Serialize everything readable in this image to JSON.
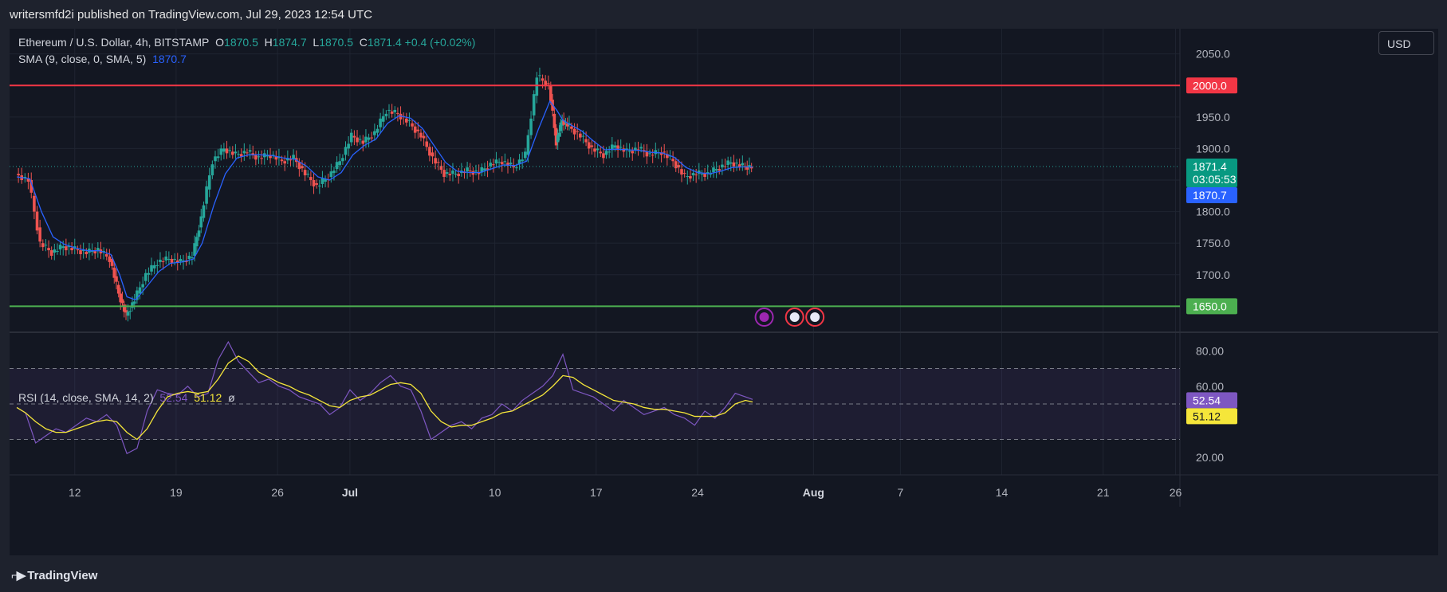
{
  "header": {
    "published_text": "writersmfd2i published on TradingView.com, Jul 29, 2023 12:54 UTC"
  },
  "legend": {
    "symbol": "Ethereum / U.S. Dollar, 4h, BITSTAMP",
    "o_label": "O",
    "o_value": "1870.5",
    "h_label": "H",
    "h_value": "1874.7",
    "l_label": "L",
    "l_value": "1870.5",
    "c_label": "C",
    "c_value": "1871.4",
    "change": "+0.4 (+0.02%)",
    "sma_label": "SMA (9, close, 0, SMA, 5)",
    "sma_value": "1870.7",
    "rsi_label": "RSI (14, close, SMA, 14, 2)",
    "rsi_value": "52.54",
    "rsi_sma_value": "51.12",
    "rsi_extra": "ø"
  },
  "currency_button": "USD",
  "price_axis": {
    "ticks": [
      "2050.0",
      "1950.0",
      "1900.0",
      "1800.0",
      "1750.0",
      "1700.0"
    ],
    "tick_values": [
      2050,
      1950,
      1900,
      1800,
      1750,
      1700
    ],
    "badges": {
      "resistance": "2000.0",
      "support": "1650.0",
      "last_price": "1871.4",
      "countdown": "03:05:53",
      "sma": "1870.7"
    }
  },
  "rsi_axis": {
    "ticks": [
      "80.00",
      "60.00",
      "20.00"
    ],
    "tick_values": [
      80,
      60,
      20
    ],
    "badges": {
      "rsi": "52.54",
      "rsi_sma": "51.12"
    }
  },
  "time_axis": {
    "labels": [
      "12",
      "19",
      "26",
      "Jul",
      "10",
      "17",
      "24",
      "Aug",
      "7",
      "14",
      "21",
      "26"
    ],
    "positions_days": [
      12,
      19,
      26,
      31,
      41,
      48,
      55,
      63,
      69,
      76,
      83,
      88
    ]
  },
  "footer": {
    "brand": "TradingView"
  },
  "colors": {
    "up": "#26a69a",
    "down": "#ef5350",
    "sma": "#2962ff",
    "resistance": "#f23645",
    "support": "#4caf50",
    "rsi": "#7e57c2",
    "rsi_sma": "#f5e63a"
  },
  "chart_data": {
    "type": "line",
    "title": "Ethereum / U.S. Dollar, 4h, BITSTAMP",
    "xlabel": "",
    "ylabel": "",
    "x_unit": "day (June 2023 = 1..30, July 2023 = 31..61)",
    "ylim": [
      1610,
      2090
    ],
    "horizontal_lines": [
      {
        "price": 2000,
        "color": "#f23645",
        "label": "2000.0"
      },
      {
        "price": 1650,
        "color": "#4caf50",
        "label": "1650.0"
      }
    ],
    "series": [
      {
        "name": "Ethereum / U.S. Dollar",
        "x": [
          8.0,
          8.9,
          9.7,
          10.5,
          11.3,
          12.1,
          12.9,
          13.7,
          14.5,
          15.1,
          15.6,
          16.2,
          17.0,
          17.8,
          18.6,
          19.4,
          20.2,
          20.8,
          21.6,
          22.4,
          23.2,
          24.0,
          24.8,
          25.6,
          26.4,
          27.2,
          28.0,
          28.8,
          29.6,
          30.4,
          31.2,
          32.0,
          32.8,
          33.6,
          34.4,
          35.2,
          36.0,
          36.8,
          37.6,
          38.4,
          39.2,
          40.0,
          40.8,
          41.6,
          42.4,
          43.2,
          44.0,
          44.8,
          45.3,
          45.7,
          46.2,
          47.0,
          47.8,
          48.6,
          49.4,
          50.2,
          51.0,
          51.8,
          52.6,
          53.4,
          54.2,
          55.0,
          55.8,
          56.6,
          57.4,
          58.2,
          58.8
        ],
        "y": [
          1860,
          1850,
          1750,
          1735,
          1745,
          1740,
          1735,
          1740,
          1725,
          1670,
          1635,
          1660,
          1700,
          1720,
          1725,
          1720,
          1730,
          1790,
          1880,
          1900,
          1890,
          1895,
          1885,
          1890,
          1880,
          1885,
          1860,
          1840,
          1855,
          1880,
          1920,
          1910,
          1925,
          1960,
          1955,
          1940,
          1920,
          1885,
          1860,
          1860,
          1865,
          1862,
          1875,
          1880,
          1870,
          1890,
          2015,
          2000,
          1910,
          1945,
          1935,
          1920,
          1900,
          1890,
          1905,
          1895,
          1900,
          1890,
          1895,
          1880,
          1855,
          1860,
          1860,
          1870,
          1878,
          1872,
          1871
        ]
      },
      {
        "name": "SMA (9, close, 0, SMA, 5)",
        "x": [
          8.0,
          8.9,
          9.7,
          10.5,
          11.3,
          12.1,
          12.9,
          13.7,
          14.5,
          15.1,
          15.6,
          16.2,
          17.0,
          17.8,
          18.6,
          19.4,
          20.2,
          20.8,
          21.6,
          22.4,
          23.2,
          24.0,
          24.8,
          25.6,
          26.4,
          27.2,
          28.0,
          28.8,
          29.6,
          30.4,
          31.2,
          32.0,
          32.8,
          33.6,
          34.4,
          35.2,
          36.0,
          36.8,
          37.6,
          38.4,
          39.2,
          40.0,
          40.8,
          41.6,
          42.4,
          43.2,
          44.0,
          44.8,
          45.3,
          45.7,
          46.2,
          47.0,
          47.8,
          48.6,
          49.4,
          50.2,
          51.0,
          51.8,
          52.6,
          53.4,
          54.2,
          55.0,
          55.8,
          56.6,
          57.4,
          58.2,
          58.8
        ],
        "y": [
          1855,
          1852,
          1800,
          1760,
          1748,
          1742,
          1738,
          1738,
          1732,
          1700,
          1665,
          1660,
          1682,
          1705,
          1718,
          1720,
          1725,
          1750,
          1810,
          1860,
          1885,
          1890,
          1890,
          1889,
          1885,
          1883,
          1872,
          1855,
          1850,
          1862,
          1890,
          1905,
          1915,
          1940,
          1952,
          1948,
          1932,
          1905,
          1878,
          1864,
          1862,
          1862,
          1868,
          1874,
          1873,
          1880,
          1930,
          1975,
          1960,
          1945,
          1938,
          1928,
          1912,
          1898,
          1899,
          1898,
          1897,
          1894,
          1893,
          1886,
          1870,
          1862,
          1860,
          1864,
          1870,
          1871,
          1870.7
        ]
      }
    ],
    "rsi": {
      "ylim": [
        10,
        90
      ],
      "bands": [
        30,
        50,
        70
      ],
      "series": [
        {
          "name": "RSI (14, close, SMA, 14, 2)",
          "x": [
            8.0,
            8.6,
            9.3,
            10.0,
            10.7,
            11.4,
            12.1,
            12.8,
            13.5,
            14.2,
            14.9,
            15.6,
            16.3,
            17.0,
            17.7,
            18.4,
            19.1,
            19.8,
            20.5,
            21.2,
            21.9,
            22.6,
            23.3,
            24.0,
            24.7,
            25.4,
            26.1,
            26.8,
            27.5,
            28.2,
            28.9,
            29.6,
            30.3,
            31.0,
            31.7,
            32.4,
            33.1,
            33.8,
            34.5,
            35.2,
            35.9,
            36.6,
            37.3,
            38.0,
            38.7,
            39.4,
            40.1,
            40.8,
            41.5,
            42.2,
            42.9,
            43.6,
            44.3,
            45.0,
            45.7,
            46.4,
            47.1,
            47.8,
            48.5,
            49.2,
            49.9,
            50.6,
            51.3,
            52.0,
            52.7,
            53.4,
            54.1,
            54.8,
            55.5,
            56.2,
            56.9,
            57.6,
            58.3,
            58.8
          ],
          "y": [
            48,
            45,
            28,
            32,
            36,
            34,
            38,
            42,
            40,
            44,
            38,
            22,
            25,
            46,
            58,
            56,
            55,
            60,
            54,
            56,
            75,
            85,
            74,
            68,
            62,
            64,
            60,
            58,
            54,
            52,
            50,
            44,
            48,
            58,
            52,
            56,
            62,
            66,
            60,
            58,
            46,
            30,
            34,
            38,
            40,
            36,
            42,
            44,
            50,
            46,
            52,
            56,
            60,
            66,
            78,
            58,
            56,
            54,
            50,
            46,
            52,
            48,
            44,
            46,
            48,
            44,
            42,
            38,
            46,
            42,
            48,
            56,
            54,
            52.54
          ]
        },
        {
          "name": "RSI-based SMA",
          "x": [
            8.0,
            8.6,
            9.3,
            10.0,
            10.7,
            11.4,
            12.1,
            12.8,
            13.5,
            14.2,
            14.9,
            15.6,
            16.3,
            17.0,
            17.7,
            18.4,
            19.1,
            19.8,
            20.5,
            21.2,
            21.9,
            22.6,
            23.3,
            24.0,
            24.7,
            25.4,
            26.1,
            26.8,
            27.5,
            28.2,
            28.9,
            29.6,
            30.3,
            31.0,
            31.7,
            32.4,
            33.1,
            33.8,
            34.5,
            35.2,
            35.9,
            36.6,
            37.3,
            38.0,
            38.7,
            39.4,
            40.1,
            40.8,
            41.5,
            42.2,
            42.9,
            43.6,
            44.3,
            45.0,
            45.7,
            46.4,
            47.1,
            47.8,
            48.5,
            49.2,
            49.9,
            50.6,
            51.3,
            52.0,
            52.7,
            53.4,
            54.1,
            54.8,
            55.5,
            56.2,
            56.9,
            57.6,
            58.3,
            58.8
          ],
          "y": [
            48,
            45,
            40,
            36,
            34,
            34,
            36,
            38,
            40,
            41,
            40,
            34,
            30,
            36,
            46,
            54,
            56,
            57,
            56,
            57,
            64,
            73,
            77,
            74,
            68,
            65,
            62,
            60,
            57,
            55,
            52,
            49,
            48,
            52,
            54,
            55,
            58,
            61,
            62,
            61,
            56,
            46,
            40,
            37,
            38,
            38,
            40,
            42,
            45,
            46,
            49,
            52,
            55,
            60,
            66,
            65,
            61,
            58,
            55,
            52,
            51,
            50,
            48,
            47,
            47,
            46,
            45,
            43,
            43,
            43,
            45,
            50,
            52,
            51.12
          ]
        }
      ]
    }
  }
}
